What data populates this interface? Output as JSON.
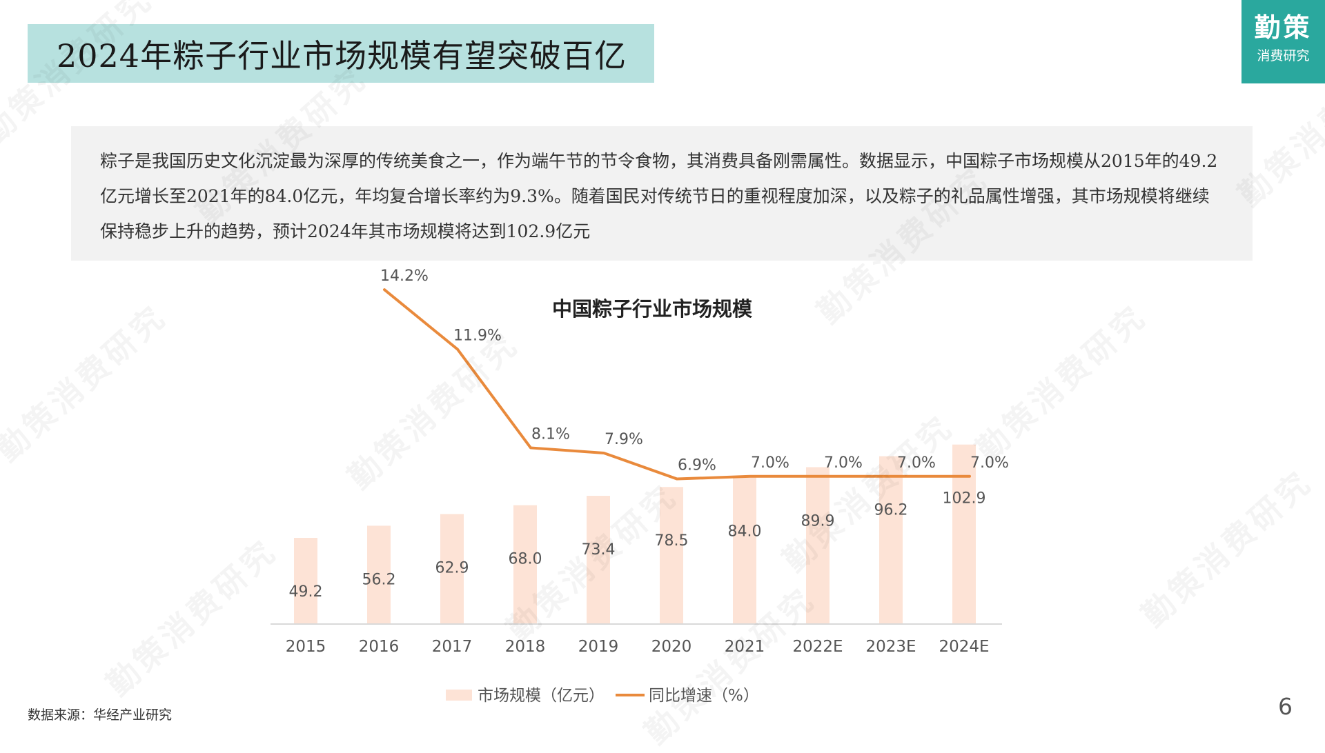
{
  "header": {
    "title": "2024年粽子行业市场规模有望突破百亿",
    "logo_main": "勤策",
    "logo_sub": "消费研究"
  },
  "description": "粽子是我国历史文化沉淀最为深厚的传统美食之一，作为端午节的节令食物，其消费具备刚需属性。数据显示，中国粽子市场规模从2015年的49.2亿元增长至2021年的84.0亿元，年均复合增长率约为9.3%。随着国民对传统节日的重视程度加深，以及粽子的礼品属性增强，其市场规模将继续保持稳步上升的趋势，预计2024年其市场规模将达到102.9亿元",
  "chart_data": {
    "type": "bar",
    "title": "中国粽子行业市场规模",
    "categories": [
      "2015",
      "2016",
      "2017",
      "2018",
      "2019",
      "2020",
      "2021",
      "2022E",
      "2023E",
      "2024E"
    ],
    "series": [
      {
        "name": "市场规模（亿元）",
        "type": "bar",
        "values": [
          49.2,
          56.2,
          62.9,
          68.0,
          73.4,
          78.5,
          84.0,
          89.9,
          96.2,
          102.9
        ],
        "labels": [
          "49.2",
          "56.2",
          "62.9",
          "68.0",
          "73.4",
          "78.5",
          "84.0",
          "89.9",
          "96.2",
          "102.9"
        ]
      },
      {
        "name": "同比增速（%）",
        "type": "line",
        "values": [
          null,
          14.2,
          11.9,
          8.1,
          7.9,
          6.9,
          7.0,
          7.0,
          7.0,
          7.0
        ],
        "labels": [
          "",
          "14.2%",
          "11.9%",
          "8.1%",
          "7.9%",
          "6.9%",
          "7.0%",
          "7.0%",
          "7.0%",
          "7.0%"
        ]
      }
    ],
    "legend_position": "bottom",
    "colors": {
      "bar": "#fde3d6",
      "line": "#e98a3c",
      "axis": "#d9d9d9",
      "text": "#555555"
    }
  },
  "footer": {
    "source": "数据来源：华经产业研究",
    "page_number": "6"
  },
  "watermark_text": "勤策消费研究"
}
